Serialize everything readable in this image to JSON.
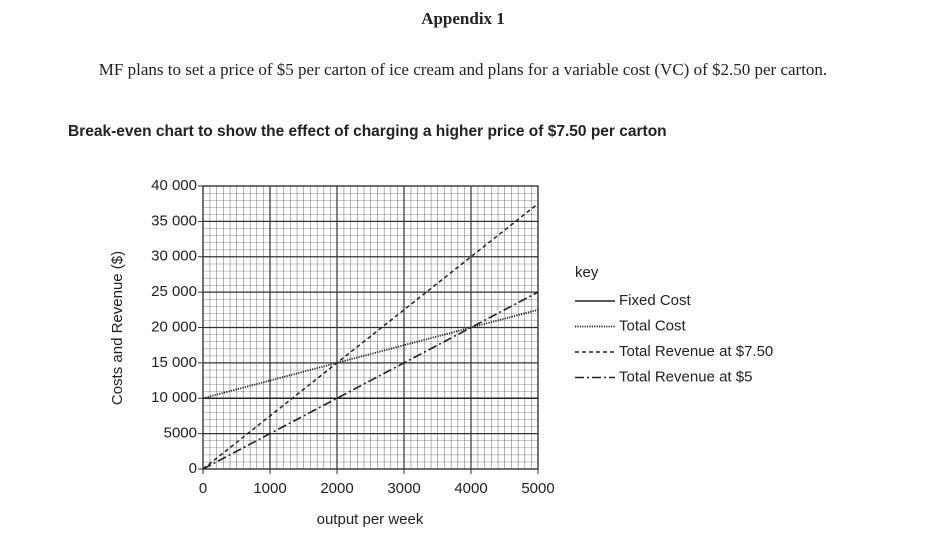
{
  "header": {
    "title": "Appendix 1"
  },
  "intro": "MF plans to set a price of $5 per carton of ice cream and plans for a variable cost (VC) of $2.50 per carton.",
  "chart_data": {
    "type": "line",
    "title": "Break-even chart to show the effect of charging a higher price of $7.50 per carton",
    "x_label": "output per week",
    "y_label": "Costs and Revenue ($)",
    "x": [
      0,
      5000
    ],
    "xlim": [
      0,
      5000
    ],
    "xticks": [
      0,
      1000,
      2000,
      3000,
      4000,
      5000
    ],
    "ylim": [
      0,
      40000
    ],
    "yticks": [
      0,
      5000,
      {
        "value": 10000,
        "label": "10 000"
      },
      {
        "value": 15000,
        "label": "15 000"
      },
      {
        "value": 20000,
        "label": "20 000"
      },
      {
        "value": 25000,
        "label": "25 000"
      },
      {
        "value": 30000,
        "label": "30 000"
      },
      {
        "value": 35000,
        "label": "35 000"
      },
      {
        "value": 40000,
        "label": "40 000"
      }
    ],
    "grid": true,
    "legend_title": "key",
    "legend": "right",
    "series": [
      {
        "name": "Fixed Cost",
        "color": "#222222",
        "style": "solid",
        "values": [
          10000,
          10000
        ]
      },
      {
        "name": "Total Cost",
        "color": "#222222",
        "style": "dotted",
        "values": [
          10000,
          22500
        ]
      },
      {
        "name": "Total Revenue at $7.50",
        "color": "#222222",
        "style": "dashed",
        "values": [
          0,
          37500
        ]
      },
      {
        "name": "Total Revenue at $5",
        "color": "#222222",
        "style": "dashdot",
        "values": [
          0,
          25000
        ]
      }
    ]
  }
}
